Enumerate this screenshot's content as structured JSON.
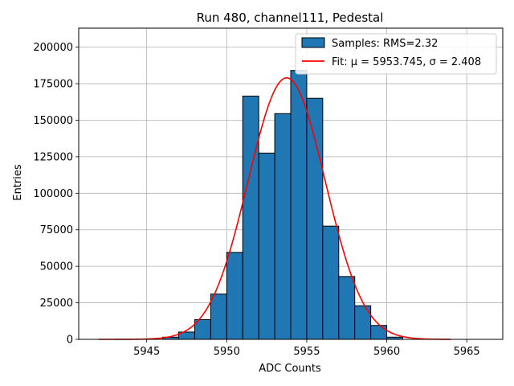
{
  "chart_data": {
    "type": "bar",
    "title": "Run 480, channel111, Pedestal",
    "xlabel": "ADC Counts",
    "ylabel": "Entries",
    "xlim": [
      5940.75,
      5967.25
    ],
    "ylim": [
      0,
      213000
    ],
    "grid": true,
    "legend_position": "top-right",
    "x_ticks": [
      5945,
      5950,
      5955,
      5960,
      5965
    ],
    "y_ticks": [
      0,
      25000,
      50000,
      75000,
      100000,
      125000,
      150000,
      175000,
      200000
    ],
    "series": [
      {
        "name": "Samples: RMS=2.32",
        "kind": "histogram",
        "color": "#1f77b4",
        "edgecolor": "#000000",
        "bins": [
          {
            "x0": 5946,
            "x1": 5947,
            "value": 1500
          },
          {
            "x0": 5947,
            "x1": 5948,
            "value": 5000
          },
          {
            "x0": 5948,
            "x1": 5949,
            "value": 13500
          },
          {
            "x0": 5949,
            "x1": 5950,
            "value": 31000
          },
          {
            "x0": 5950,
            "x1": 5951,
            "value": 59500
          },
          {
            "x0": 5951,
            "x1": 5952,
            "value": 166500
          },
          {
            "x0": 5952,
            "x1": 5953,
            "value": 127500
          },
          {
            "x0": 5953,
            "x1": 5954,
            "value": 154500
          },
          {
            "x0": 5954,
            "x1": 5955,
            "value": 184000
          },
          {
            "x0": 5955,
            "x1": 5956,
            "value": 165000
          },
          {
            "x0": 5956,
            "x1": 5957,
            "value": 77500
          },
          {
            "x0": 5957,
            "x1": 5958,
            "value": 43000
          },
          {
            "x0": 5958,
            "x1": 5959,
            "value": 23000
          },
          {
            "x0": 5959,
            "x1": 5960,
            "value": 9500
          },
          {
            "x0": 5960,
            "x1": 5961,
            "value": 1500
          }
        ]
      },
      {
        "name": "Fit: μ = 5953.745, σ = 2.408",
        "kind": "gaussian",
        "color": "#ff0000",
        "mu": 5953.745,
        "sigma": 2.408,
        "amplitude": 179000,
        "x_range": [
          5942,
          5964
        ]
      }
    ]
  }
}
